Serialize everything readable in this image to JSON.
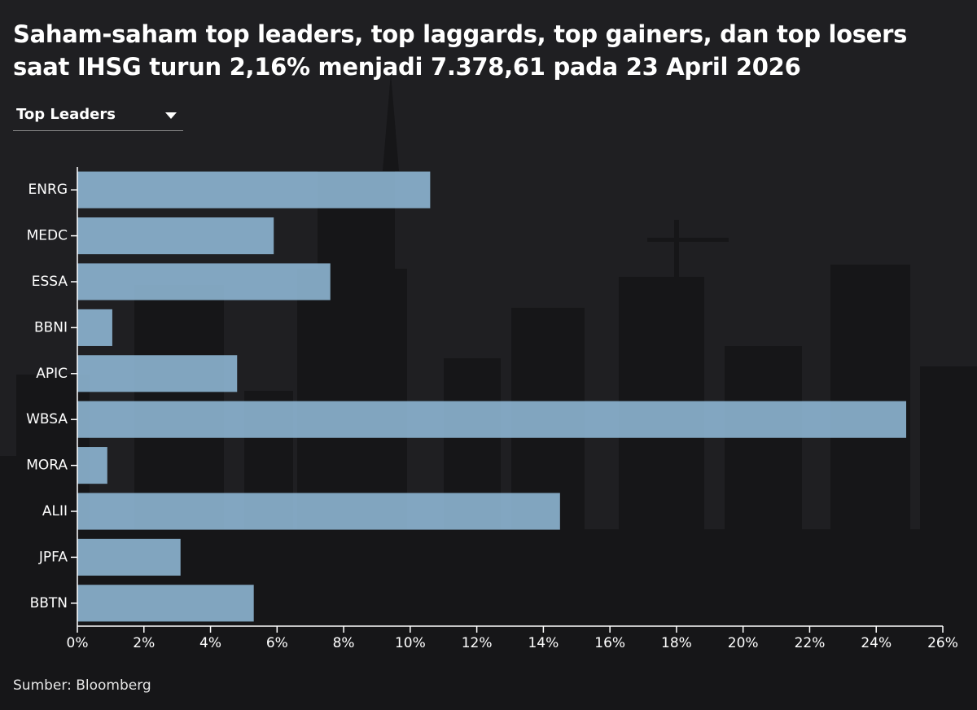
{
  "title": "Saham-saham top leaders, top laggards, top gainers, dan top losers saat IHSG turun 2,16% menjadi 7.378,61 pada 23 April 2026",
  "dropdown": {
    "selected": "Top Leaders"
  },
  "source": "Sumber: Bloomberg",
  "colors": {
    "background": "#1f1f22",
    "bar": "#98c4e4",
    "text": "#ffffff",
    "axis": "#ffffff"
  },
  "chart_data": {
    "type": "bar",
    "orientation": "horizontal",
    "title": "Saham-saham top leaders, top laggards, top gainers, dan top losers saat IHSG turun 2,16% menjadi 7.378,61 pada 23 April 2026",
    "categories": [
      "ENRG",
      "MEDC",
      "ESSA",
      "BBNI",
      "APIC",
      "WBSA",
      "MORA",
      "ALII",
      "JPFA",
      "BBTN"
    ],
    "values": [
      10.6,
      5.9,
      7.6,
      1.05,
      4.8,
      24.9,
      0.9,
      14.5,
      3.1,
      5.3
    ],
    "xlim": [
      0,
      26
    ],
    "xticks": [
      0,
      2,
      4,
      6,
      8,
      10,
      12,
      14,
      16,
      18,
      20,
      22,
      24,
      26
    ],
    "tick_labels": [
      "0%",
      "2%",
      "4%",
      "6%",
      "8%",
      "10%",
      "12%",
      "14%",
      "16%",
      "18%",
      "20%",
      "22%",
      "24%",
      "26%"
    ],
    "xlabel": "",
    "ylabel": "",
    "grid": false
  }
}
